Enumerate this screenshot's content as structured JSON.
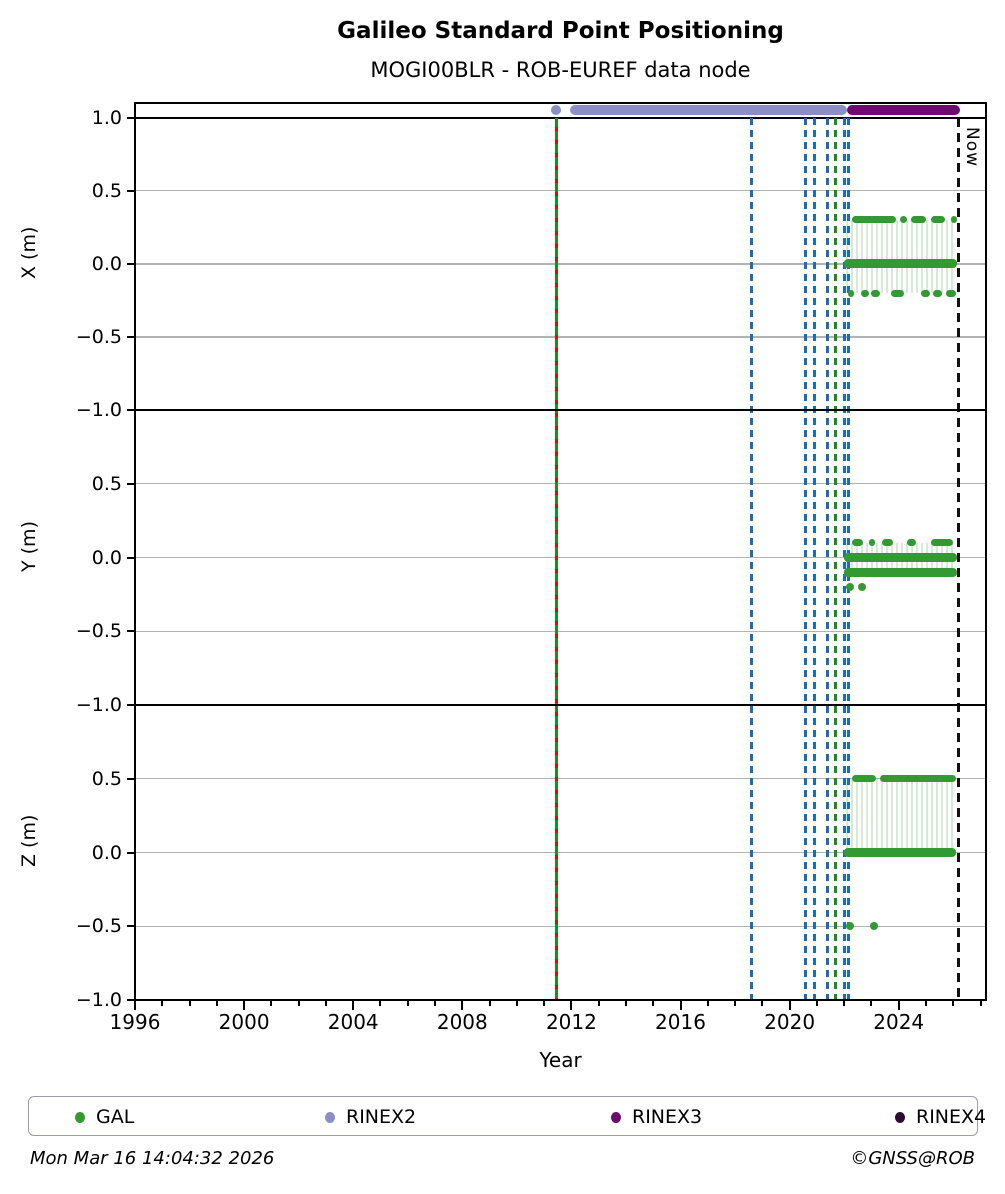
{
  "header": {
    "title": "Galileo Standard Point Positioning",
    "subtitle": "MOGI00BLR - ROB-EUREF data node"
  },
  "footer": {
    "timestamp": "Mon Mar 16 14:04:32 2026",
    "credit": "©GNSS@ROB"
  },
  "legend": {
    "items": [
      {
        "label": "GAL",
        "color": "#339933"
      },
      {
        "label": "RINEX2",
        "color": "#8b8fc6"
      },
      {
        "label": "RINEX3",
        "color": "#6d0a70"
      },
      {
        "label": "RINEX4",
        "color": "#2d0b33"
      }
    ]
  },
  "colors": {
    "gal": "#339933",
    "rinex2": "#8b8fc6",
    "rinex3": "#6d0a70",
    "event_blue": "#1f6cb4",
    "event_green": "#1f8b1f",
    "event_red": "#cc1111",
    "grid": "#b3b3b3"
  },
  "chart_data": {
    "type": "scatter",
    "title": "Galileo Standard Point Positioning",
    "subtitle": "MOGI00BLR - ROB-EUREF data node",
    "xlabel": "Year",
    "x_range": [
      1996,
      2027.2
    ],
    "x_major_ticks": [
      1996,
      2000,
      2004,
      2008,
      2012,
      2016,
      2020,
      2024
    ],
    "x_minor_tick_step": 1,
    "grid": "horizontal-only",
    "panels": [
      {
        "ylabel": "X (m)",
        "ylim": [
          -1.0,
          1.1
        ],
        "yticks": [
          1.0,
          0.5,
          0.0,
          -0.5,
          -1.0
        ],
        "topline_value": 1.0,
        "connectors": [
          [
            0.3,
            0.0
          ],
          [
            0.0,
            -0.2
          ]
        ],
        "series": [
          {
            "name": "GAL",
            "value": 0.0,
            "style": "thick",
            "spans": [
              [
                2022.0,
                2026.15
              ]
            ]
          },
          {
            "name": "GAL",
            "value": 0.3,
            "style": "dots",
            "spans": [
              [
                2022.3,
                2023.9
              ],
              [
                2024.05,
                2024.3
              ],
              [
                2024.45,
                2025.0
              ],
              [
                2025.2,
                2025.7
              ],
              [
                2025.9,
                2026.1
              ]
            ]
          },
          {
            "name": "GAL",
            "value": -0.2,
            "style": "dots",
            "spans": [
              [
                2022.15,
                2022.35
              ],
              [
                2022.6,
                2022.9
              ],
              [
                2023.0,
                2023.3
              ],
              [
                2023.7,
                2024.2
              ],
              [
                2024.8,
                2025.15
              ],
              [
                2025.25,
                2025.6
              ],
              [
                2025.75,
                2026.1
              ]
            ]
          }
        ]
      },
      {
        "ylabel": "Y (m)",
        "ylim": [
          -1.0,
          1.0
        ],
        "yticks": [
          0.5,
          0.0,
          -0.5,
          -1.0
        ],
        "connectors": [
          [
            0.1,
            -0.1
          ]
        ],
        "series": [
          {
            "name": "GAL",
            "value": 0.0,
            "style": "thick",
            "spans": [
              [
                2022.0,
                2026.15
              ]
            ]
          },
          {
            "name": "GAL",
            "value": -0.1,
            "style": "thick",
            "spans": [
              [
                2022.0,
                2026.15
              ]
            ]
          },
          {
            "name": "GAL",
            "value": 0.1,
            "style": "dots",
            "spans": [
              [
                2022.3,
                2022.7
              ],
              [
                2022.9,
                2023.05
              ],
              [
                2023.4,
                2023.8
              ],
              [
                2024.3,
                2024.65
              ],
              [
                2025.2,
                2026.0
              ]
            ]
          },
          {
            "name": "GAL",
            "value": -0.2,
            "style": "points",
            "points": [
              2022.2,
              2022.65
            ]
          }
        ]
      },
      {
        "ylabel": "Z (m)",
        "ylim": [
          -1.0,
          1.0
        ],
        "yticks": [
          0.5,
          0.0,
          -0.5,
          -1.0
        ],
        "connectors": [
          [
            0.5,
            0.0
          ]
        ],
        "series": [
          {
            "name": "GAL",
            "value": 0.5,
            "style": "dots",
            "spans": [
              [
                2022.3,
                2023.15
              ],
              [
                2023.3,
                2026.1
              ]
            ]
          },
          {
            "name": "GAL",
            "value": 0.0,
            "style": "thick",
            "spans": [
              [
                2022.0,
                2026.1
              ]
            ]
          },
          {
            "name": "GAL",
            "value": -0.5,
            "style": "points",
            "points": [
              2022.2,
              2023.1
            ]
          }
        ]
      }
    ],
    "availability": [
      {
        "name": "RINEX2",
        "color": "#8b8fc6",
        "value": 1.05,
        "point": 2011.45,
        "spans": [
          [
            2011.95,
            2022.1
          ]
        ]
      },
      {
        "name": "RINEX3",
        "color": "#6d0a70",
        "value": 1.05,
        "spans": [
          [
            2022.1,
            2026.25
          ]
        ]
      }
    ],
    "events": [
      {
        "year": 2011.45,
        "style": "green-red-dashed",
        "label": ""
      },
      {
        "year": 2018.6,
        "style": "blue-dashed",
        "label": ""
      },
      {
        "year": 2020.6,
        "style": "blue-dashed",
        "label": ""
      },
      {
        "year": 2020.9,
        "style": "blue-dashed",
        "label": ""
      },
      {
        "year": 2021.4,
        "style": "blue-dashed",
        "label": ""
      },
      {
        "year": 2021.7,
        "style": "green-dashed",
        "label": ""
      },
      {
        "year": 2022.0,
        "style": "blue-dashed",
        "label": ""
      },
      {
        "year": 2022.15,
        "style": "blue-dashed",
        "label": ""
      },
      {
        "year": 2026.2,
        "style": "black-dashed",
        "label": "Now"
      }
    ],
    "now_label": "Now"
  }
}
